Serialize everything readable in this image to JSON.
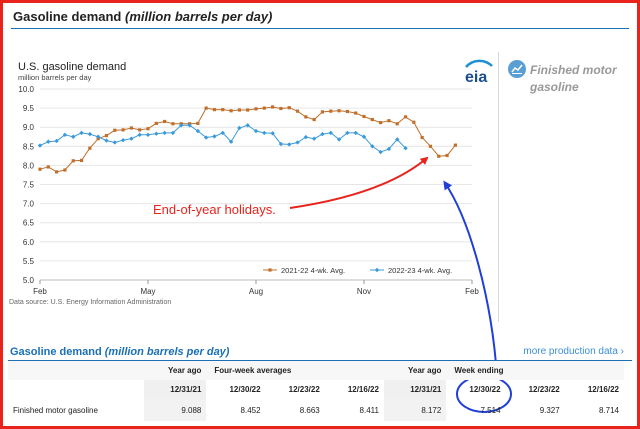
{
  "page": {
    "title_main": "Gasoline demand",
    "title_italic": "(million barrels per day)"
  },
  "chart_data": {
    "type": "line",
    "title": "U.S. gasoline demand",
    "subtitle": "million barrels per day",
    "source": "Data source: U.S. Energy Information Administration",
    "ylim": [
      5.0,
      10.0
    ],
    "yticks": [
      "10.0",
      "9.5",
      "9.0",
      "8.5",
      "8.0",
      "7.5",
      "7.0",
      "6.5",
      "6.0",
      "5.5",
      "5.0"
    ],
    "xticks": [
      "Feb",
      "May",
      "Aug",
      "Nov",
      "Feb"
    ],
    "grid": true,
    "legend_position": "bottom-right",
    "annotation": "End-of-year holidays.",
    "series": [
      {
        "name": "2021-22  4-wk. Avg.",
        "color": "#c0702c",
        "marker": "square",
        "values": [
          7.9,
          7.96,
          7.83,
          7.88,
          8.12,
          8.13,
          8.45,
          8.7,
          8.78,
          8.92,
          8.93,
          8.98,
          8.93,
          8.96,
          9.1,
          9.15,
          9.09,
          9.09,
          9.09,
          9.1,
          9.5,
          9.46,
          9.46,
          9.43,
          9.45,
          9.45,
          9.48,
          9.5,
          9.53,
          9.49,
          9.51,
          9.42,
          9.27,
          9.2,
          9.4,
          9.42,
          9.43,
          9.41,
          9.37,
          9.28,
          9.2,
          9.12,
          9.17,
          9.09,
          9.27,
          9.13,
          8.73,
          8.5,
          8.24,
          8.26,
          8.53
        ]
      },
      {
        "name": "2022-23  4-wk. Avg.",
        "color": "#3a9ad9",
        "marker": "diamond",
        "values": [
          8.52,
          8.62,
          8.64,
          8.8,
          8.75,
          8.85,
          8.82,
          8.75,
          8.65,
          8.6,
          8.66,
          8.7,
          8.8,
          8.8,
          8.83,
          8.85,
          8.85,
          9.05,
          9.05,
          8.9,
          8.73,
          8.76,
          8.85,
          8.62,
          8.98,
          9.05,
          8.9,
          8.85,
          8.84,
          8.56,
          8.55,
          8.6,
          8.74,
          8.7,
          8.82,
          8.85,
          8.68,
          8.85,
          8.85,
          8.75,
          8.5,
          8.35,
          8.43,
          8.68,
          8.45
        ]
      }
    ]
  },
  "panel": {
    "logo_text": "eia",
    "label": "Finished motor gasoline"
  },
  "table": {
    "section_title_main": "Gasoline demand",
    "section_title_italic": "(million barrels per day)",
    "more_link": "more production data ›",
    "header_groups": [
      "Year ago",
      "Four-week averages",
      "Year ago",
      "Week ending"
    ],
    "dates": [
      "12/31/21",
      "12/30/22",
      "12/23/22",
      "12/16/22",
      "12/31/21",
      "12/30/22",
      "12/23/22",
      "12/16/22"
    ],
    "rows": [
      {
        "label": "Finished motor gasoline",
        "values": [
          "9.088",
          "8.452",
          "8.663",
          "8.411",
          "8.172",
          "7.514",
          "9.327",
          "8.714"
        ]
      }
    ]
  }
}
